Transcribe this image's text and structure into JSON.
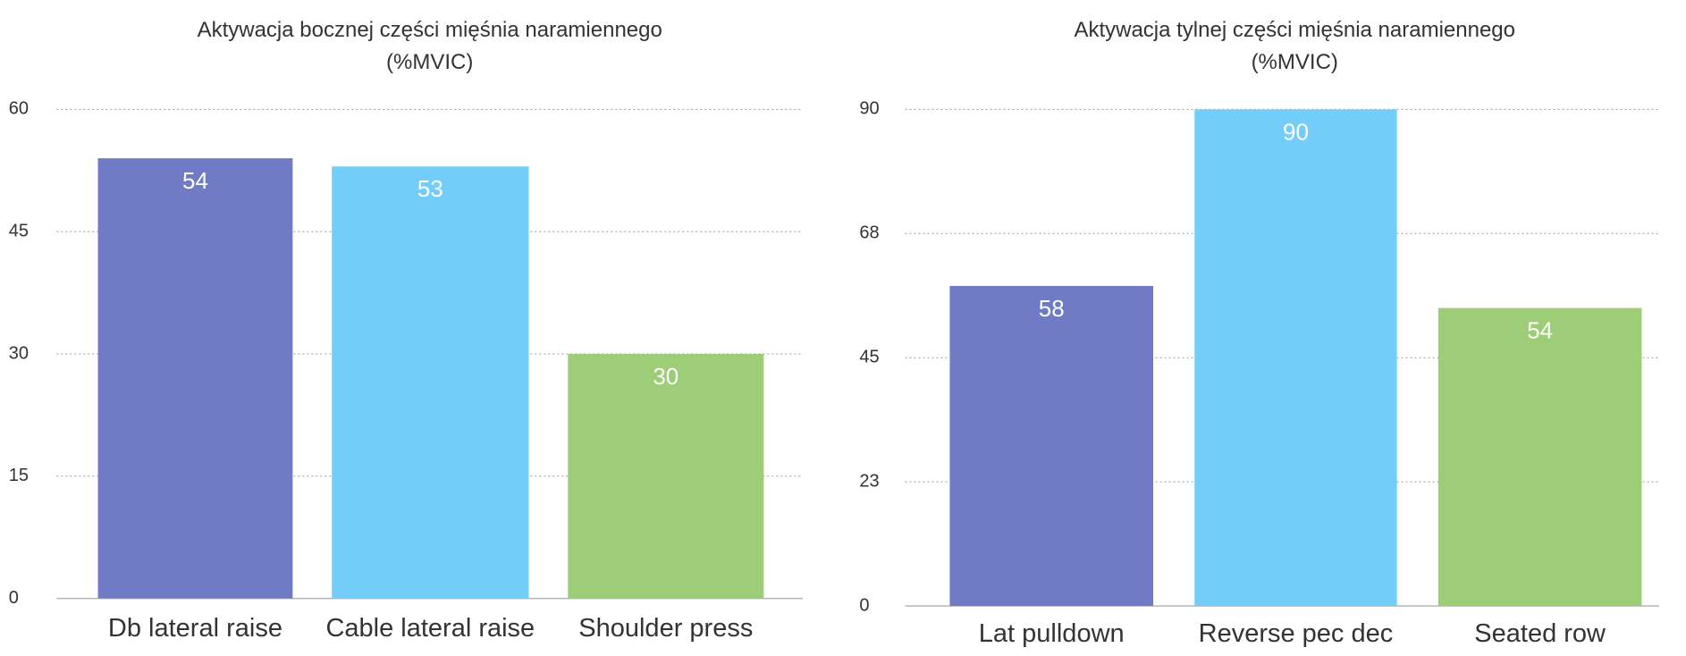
{
  "chart_data": [
    {
      "type": "bar",
      "title": [
        "Aktywacja bocznej części mięśnia naramiennego",
        "(%MVIC)"
      ],
      "categories": [
        "Db lateral raise",
        "Cable lateral raise",
        "Shoulder press"
      ],
      "values": [
        54,
        53,
        30
      ],
      "colors": [
        "#6f7cc5",
        "#73cdf9",
        "#9dcd76"
      ],
      "ylim": [
        0,
        60
      ],
      "yticks": [
        0,
        15,
        30,
        45,
        60
      ],
      "grid": true
    },
    {
      "type": "bar",
      "title": [
        "Aktywacja tylnej części mięśnia naramiennego",
        "(%MVIC)"
      ],
      "categories": [
        "Lat pulldown",
        "Reverse pec dec",
        "Seated row"
      ],
      "values": [
        58,
        90,
        54
      ],
      "colors": [
        "#6f7cc5",
        "#73cdf9",
        "#9dcd76"
      ],
      "ylim": [
        0,
        90
      ],
      "yticks": [
        0,
        {
          "value": 22.5,
          "label": "23"
        },
        45,
        {
          "value": 67.5,
          "label": "68"
        },
        90
      ],
      "grid": true
    }
  ]
}
